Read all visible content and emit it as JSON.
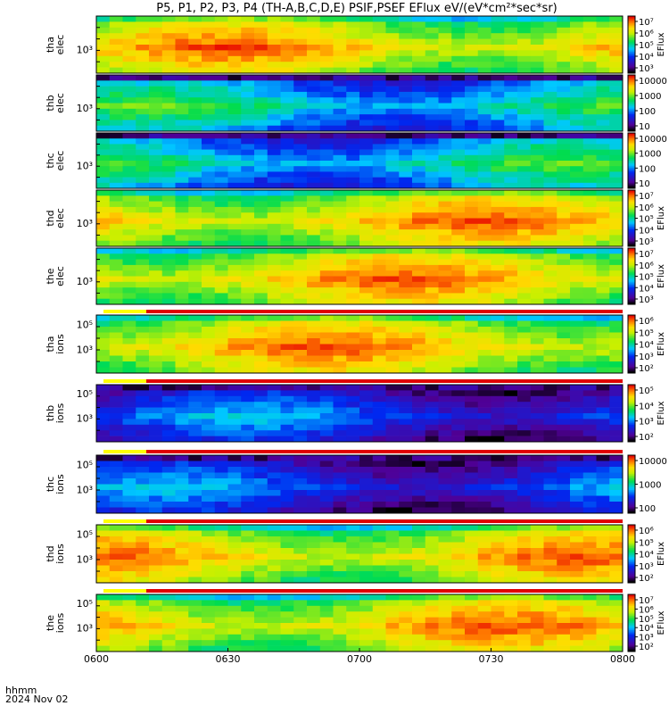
{
  "chart_data": {
    "type": "heatmap",
    "title": "P5, P1, P2, P3, P4 (TH-A,B,C,D,E) PSIF,PSEF EFlux eV/(eV*cm²*sec*sr)",
    "x_ticks": [
      "0600",
      "0630",
      "0700",
      "0730",
      "0800"
    ],
    "x_range": [
      "06:00",
      "08:00"
    ],
    "time_label": "hhmm",
    "date_label": "2024 Nov 02",
    "colorbar_label": "EFlux",
    "y_scale": "log",
    "panels": [
      {
        "probe": "tha",
        "species": "elec",
        "y_tick_label": "10³",
        "colorbar_ticks": [
          "10⁷",
          "10⁶",
          "10⁵",
          "10⁴",
          "10³"
        ],
        "colorbar_title": "EFlux",
        "level": "high",
        "flag_bar": false
      },
      {
        "probe": "thb",
        "species": "elec",
        "y_tick_label": "10³",
        "colorbar_ticks": [
          "10000",
          "1000",
          "100",
          "10"
        ],
        "colorbar_title": "",
        "level": "mid-low",
        "flag_bar": false
      },
      {
        "probe": "thc",
        "species": "elec",
        "y_tick_label": "10³",
        "colorbar_ticks": [
          "10000",
          "1000",
          "100",
          "10"
        ],
        "colorbar_title": "",
        "level": "mid-low",
        "flag_bar": false
      },
      {
        "probe": "thd",
        "species": "elec",
        "y_tick_label": "10³",
        "colorbar_ticks": [
          "10⁷",
          "10⁶",
          "10⁵",
          "10⁴",
          "10³"
        ],
        "colorbar_title": "EFlux",
        "level": "high",
        "flag_bar": false
      },
      {
        "probe": "the",
        "species": "elec",
        "y_tick_label": "10³",
        "colorbar_ticks": [
          "10⁷",
          "10⁶",
          "10⁵",
          "10⁴",
          "10³"
        ],
        "colorbar_title": "EFlux",
        "level": "high",
        "flag_bar": false
      },
      {
        "probe": "tha",
        "species": "ions",
        "y_tick_label": "10³",
        "y_tick_label_upper": "10⁵",
        "colorbar_ticks": [
          "10⁶",
          "10⁵",
          "10⁴",
          "10³",
          "10²"
        ],
        "colorbar_title": "EFlux",
        "level": "high",
        "flag_bar": true
      },
      {
        "probe": "thb",
        "species": "ions",
        "y_tick_label": "10³",
        "y_tick_label_upper": "10⁵",
        "colorbar_ticks": [
          "10⁵",
          "10⁴",
          "10³",
          "10²"
        ],
        "colorbar_title": "EFlux",
        "level": "low",
        "flag_bar": true
      },
      {
        "probe": "thc",
        "species": "ions",
        "y_tick_label": "10³",
        "y_tick_label_upper": "10⁵",
        "colorbar_ticks": [
          "10000",
          "1000",
          "100"
        ],
        "colorbar_title": "",
        "level": "low",
        "flag_bar": true
      },
      {
        "probe": "thd",
        "species": "ions",
        "y_tick_label": "10³",
        "y_tick_label_upper": "10⁵",
        "colorbar_ticks": [
          "10⁶",
          "10⁵",
          "10⁴",
          "10³",
          "10²"
        ],
        "colorbar_title": "EFlux",
        "level": "high",
        "flag_bar": true
      },
      {
        "probe": "the",
        "species": "ions",
        "y_tick_label": "10³",
        "y_tick_label_upper": "10⁵",
        "colorbar_ticks": [
          "10⁷",
          "10⁶",
          "10⁵",
          "10⁴",
          "10³",
          "10²"
        ],
        "colorbar_title": "EFlux",
        "level": "high",
        "flag_bar": true
      }
    ]
  }
}
